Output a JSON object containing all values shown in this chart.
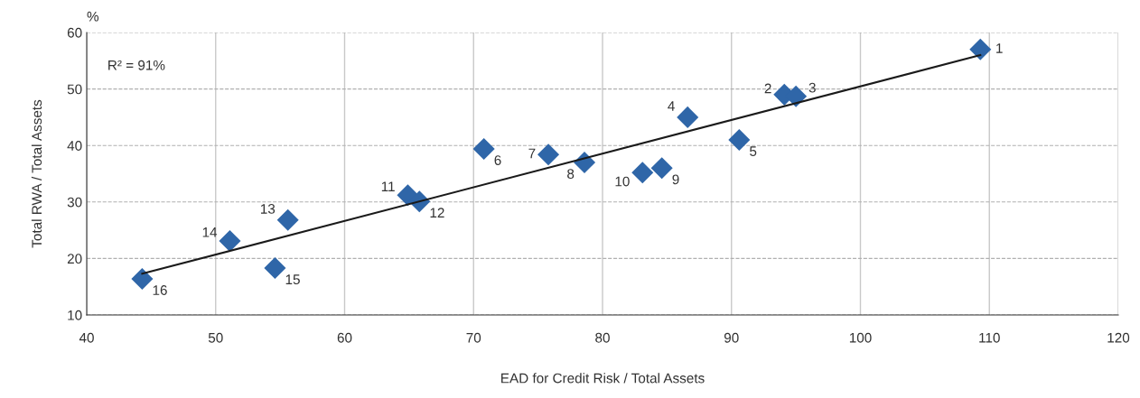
{
  "chart_data": {
    "type": "scatter",
    "xlabel": "EAD for Credit Risk / Total Assets",
    "ylabel": "Total RWA / Total Assets",
    "xlim": [
      40,
      120
    ],
    "xticks": [
      40,
      50,
      60,
      70,
      80,
      90,
      100,
      110,
      120
    ],
    "ylim": [
      10,
      60
    ],
    "yticks": [
      10,
      20,
      30,
      40,
      50,
      60
    ],
    "grid": true,
    "series": [
      {
        "marker": "diamond",
        "color": "#2f66a8",
        "x": [
          109.3,
          94.1,
          95.0,
          86.6,
          90.6,
          70.8,
          75.8,
          78.6,
          84.6,
          83.1,
          64.9,
          65.8,
          55.6,
          51.1,
          54.6,
          44.3
        ],
        "values": [
          57.0,
          49.0,
          48.7,
          45.0,
          41.0,
          39.4,
          38.4,
          37.0,
          36.0,
          35.2,
          31.2,
          30.1,
          26.8,
          23.1,
          18.3,
          16.4
        ]
      },
      {
        "type": "line",
        "marker": "none",
        "color": "#1a1a1a",
        "x": [
          44.3,
          109.3
        ],
        "values": [
          17.3,
          56.0
        ]
      }
    ],
    "annotations": [
      "%",
      "R² = 91%",
      {
        "text": "1",
        "x": 109.3,
        "y": 57.0
      },
      {
        "text": "2",
        "x": 94.1,
        "y": 49.0
      },
      {
        "text": "3",
        "x": 95.0,
        "y": 48.7
      },
      {
        "text": "4",
        "x": 86.6,
        "y": 45.0
      },
      {
        "text": "5",
        "x": 90.6,
        "y": 41.0
      },
      {
        "text": "6",
        "x": 70.8,
        "y": 39.4
      },
      {
        "text": "7",
        "x": 75.8,
        "y": 38.4
      },
      {
        "text": "8",
        "x": 78.6,
        "y": 37.0
      },
      {
        "text": "9",
        "x": 84.6,
        "y": 36.0
      },
      {
        "text": "10",
        "x": 83.1,
        "y": 35.2
      },
      {
        "text": "11",
        "x": 64.9,
        "y": 31.2
      },
      {
        "text": "12",
        "x": 65.8,
        "y": 30.1
      },
      {
        "text": "13",
        "x": 55.6,
        "y": 26.8
      },
      {
        "text": "14",
        "x": 51.1,
        "y": 23.1
      },
      {
        "text": "15",
        "x": 54.6,
        "y": 18.3
      },
      {
        "text": "16",
        "x": 44.3,
        "y": 16.4
      }
    ]
  }
}
